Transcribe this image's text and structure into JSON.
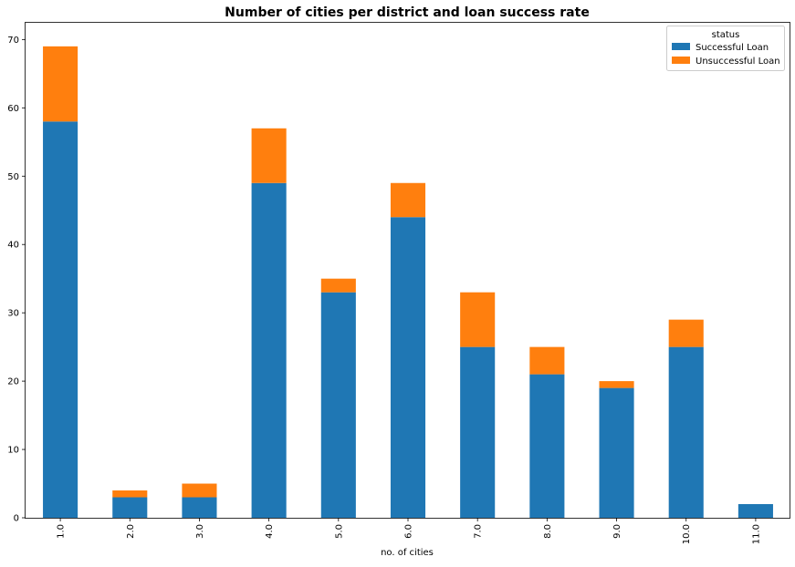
{
  "chart_data": {
    "type": "bar",
    "stacked": true,
    "title": "Number of cities per district and loan success rate",
    "xlabel": "no. of cities",
    "ylabel": "",
    "categories": [
      "1.0",
      "2.0",
      "3.0",
      "4.0",
      "5.0",
      "6.0",
      "7.0",
      "8.0",
      "9.0",
      "10.0",
      "11.0"
    ],
    "series": [
      {
        "name": "Successful Loan",
        "color": "#1f77b4",
        "values": [
          58,
          3,
          3,
          49,
          33,
          44,
          25,
          21,
          19,
          25,
          2
        ]
      },
      {
        "name": "Unsuccessful Loan",
        "color": "#ff7f0e",
        "values": [
          11,
          1,
          2,
          8,
          2,
          5,
          8,
          4,
          1,
          4,
          0
        ]
      }
    ],
    "ylim": [
      0,
      72.45
    ],
    "yticks": [
      0,
      10,
      20,
      30,
      40,
      50,
      60,
      70
    ],
    "grid": false,
    "legend": {
      "title": "status",
      "position": "top-right"
    }
  }
}
